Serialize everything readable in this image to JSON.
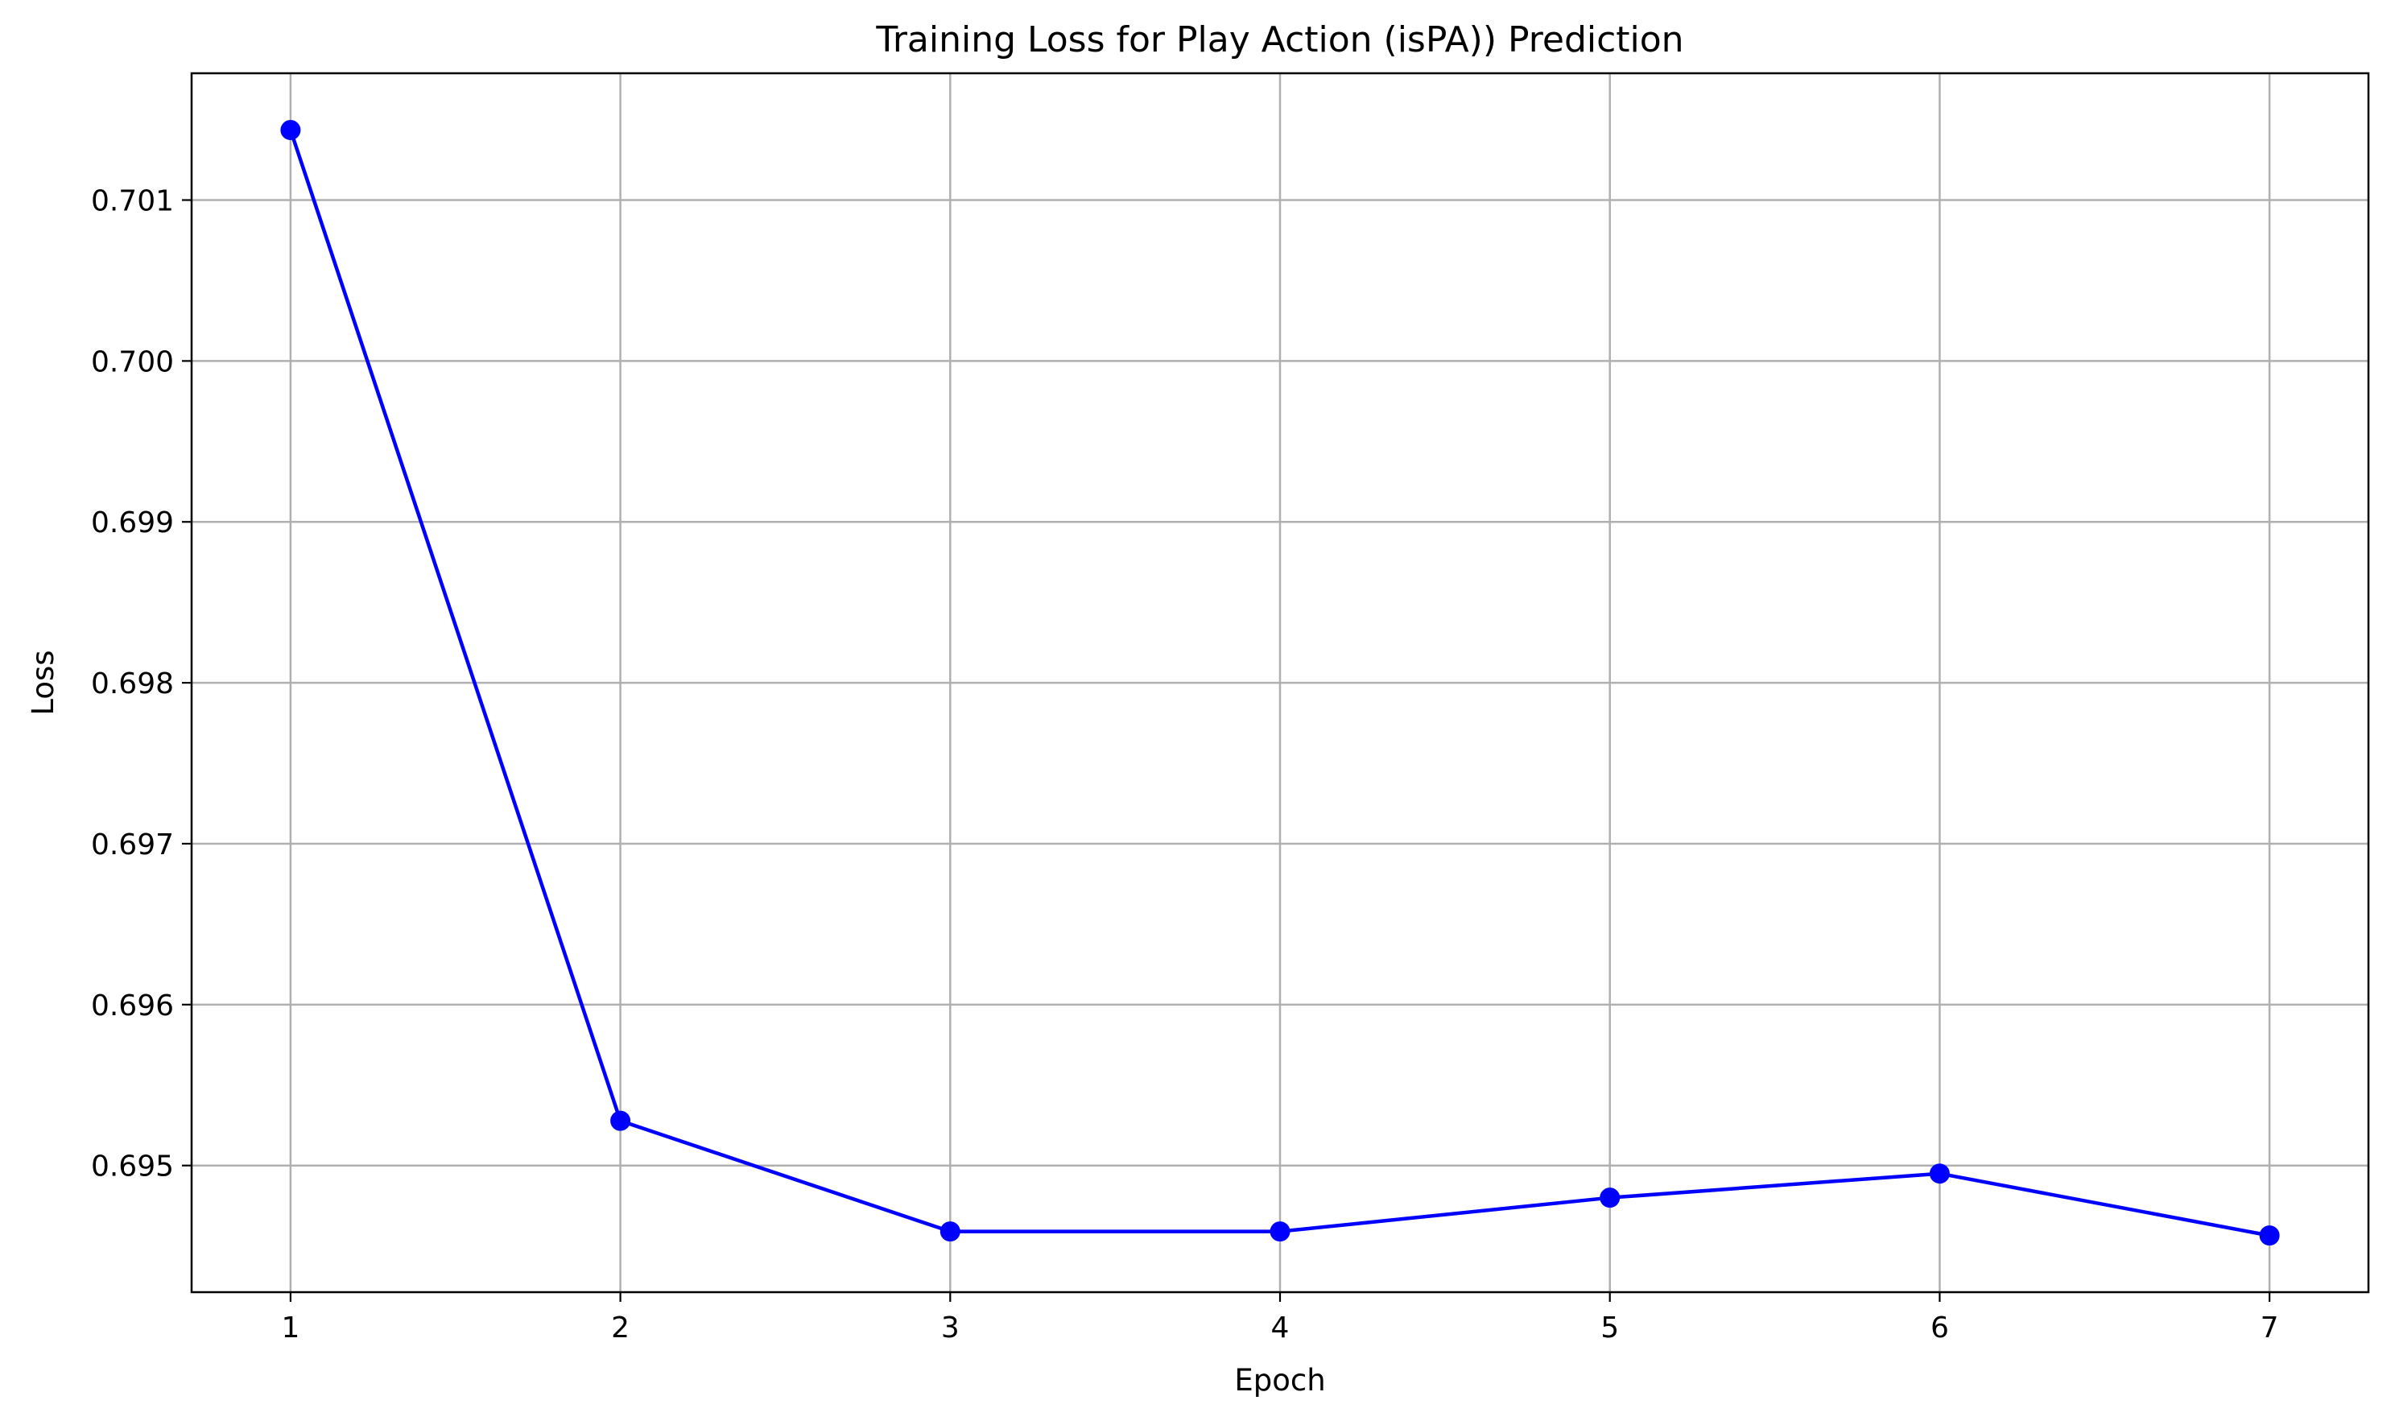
{
  "chart_data": {
    "type": "line",
    "title": "Training Loss for Play Action (isPA)) Prediction",
    "xlabel": "Epoch",
    "ylabel": "Loss",
    "x": [
      1,
      2,
      3,
      4,
      5,
      6,
      7
    ],
    "series": [
      {
        "values": [
          0.701435,
          0.695278,
          0.69459,
          0.69459,
          0.6948,
          0.69495,
          0.694565
        ],
        "color": "#0000ff",
        "marker": "circle"
      }
    ],
    "xlim": [
      0.7,
      7.3
    ],
    "ylim": [
      0.694213,
      0.701788
    ],
    "x_ticks": [
      "1",
      "2",
      "3",
      "4",
      "5",
      "6",
      "7"
    ],
    "y_ticks": [
      0.695,
      0.696,
      0.697,
      0.698,
      0.699,
      0.7,
      0.701
    ],
    "y_tick_labels": [
      "0.695",
      "0.696",
      "0.697",
      "0.698",
      "0.699",
      "0.700",
      "0.701"
    ],
    "grid": true,
    "legend": "none"
  }
}
